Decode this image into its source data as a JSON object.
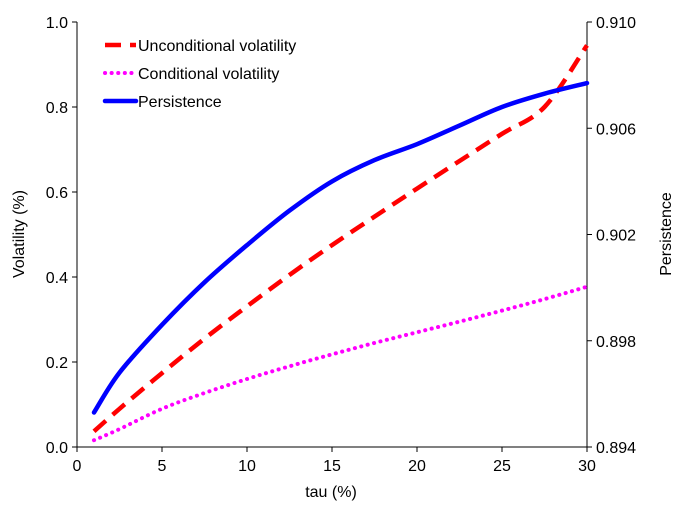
{
  "chart_data": {
    "type": "line",
    "xlabel": "tau (%)",
    "ylabel": "Volatility (%)",
    "y2label": "Persistence",
    "xlim": [
      0,
      30
    ],
    "ylim": [
      0,
      1.0
    ],
    "y2lim": [
      0.894,
      0.91
    ],
    "xticks": [
      "0",
      "5",
      "10",
      "15",
      "20",
      "25",
      "30"
    ],
    "yticks": [
      "0.0",
      "0.2",
      "0.4",
      "0.6",
      "0.8",
      "1.0"
    ],
    "y2ticks": [
      "0.894",
      "0.898",
      "0.902",
      "0.906",
      "0.910"
    ],
    "grid": false,
    "legend": "top-left",
    "series": [
      {
        "name": "Unconditional volatility",
        "axis": "left",
        "style": "dashed",
        "color": "#ff0000",
        "x": [
          1,
          2.5,
          5,
          7.5,
          10,
          12.5,
          15,
          17.5,
          20,
          22.5,
          25,
          27.5,
          30
        ],
        "y": [
          0.037,
          0.09,
          0.174,
          0.255,
          0.331,
          0.405,
          0.475,
          0.542,
          0.608,
          0.673,
          0.737,
          0.8,
          0.945
        ]
      },
      {
        "name": "Conditional volatility",
        "axis": "left",
        "style": "dotted",
        "color": "#ff00ff",
        "x": [
          1,
          2.5,
          5,
          7.5,
          10,
          12.5,
          15,
          17.5,
          20,
          22.5,
          25,
          27.5,
          30
        ],
        "y": [
          0.016,
          0.042,
          0.09,
          0.127,
          0.16,
          0.19,
          0.218,
          0.245,
          0.27,
          0.295,
          0.321,
          0.348,
          0.377
        ]
      },
      {
        "name": "Persistence",
        "axis": "right",
        "style": "solid",
        "color": "#0000ff",
        "x": [
          1,
          2.5,
          5,
          7.5,
          10,
          12.5,
          15,
          17.5,
          20,
          22.5,
          25,
          27.5,
          30
        ],
        "y": [
          0.8953,
          0.8968,
          0.8986,
          0.9002,
          0.9016,
          0.9029,
          0.904,
          0.9048,
          0.9054,
          0.9061,
          0.9068,
          0.9073,
          0.9077
        ]
      }
    ]
  }
}
